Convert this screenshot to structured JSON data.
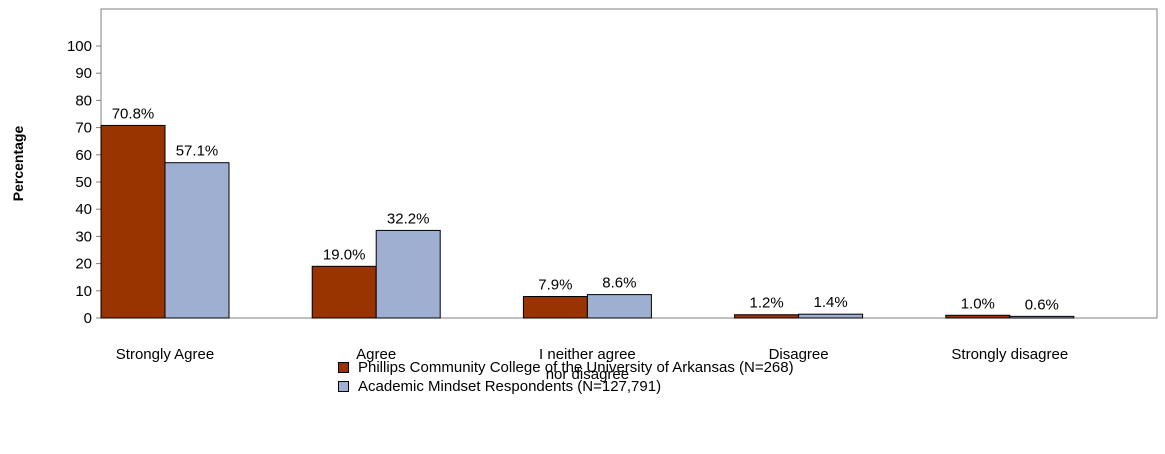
{
  "chart_data": {
    "type": "bar",
    "title": "",
    "xlabel": "",
    "ylabel": "Percentage",
    "ylim": [
      0,
      100
    ],
    "yticks": [
      0,
      10,
      20,
      30,
      40,
      50,
      60,
      70,
      80,
      90,
      100
    ],
    "grid": false,
    "legend_position": "bottom",
    "categories": [
      [
        "Strongly Agree"
      ],
      [
        "Agree"
      ],
      [
        "I neither agree",
        "nor disagree"
      ],
      [
        "Disagree"
      ],
      [
        "Strongly disagree"
      ]
    ],
    "series": [
      {
        "name": "Phillips Community College of the University of Arkansas (N=268)",
        "color": "#993300",
        "values": [
          70.8,
          19.0,
          7.9,
          1.2,
          1.0
        ],
        "labels": [
          "70.8%",
          "19.0%",
          "7.9%",
          "1.2%",
          "1.0%"
        ]
      },
      {
        "name": "Academic Mindset Respondents (N=127,791)",
        "color": "#9fafd2",
        "values": [
          57.1,
          32.2,
          8.6,
          1.4,
          0.6
        ],
        "labels": [
          "57.1%",
          "32.2%",
          "8.6%",
          "1.4%",
          "0.6%"
        ]
      }
    ]
  }
}
